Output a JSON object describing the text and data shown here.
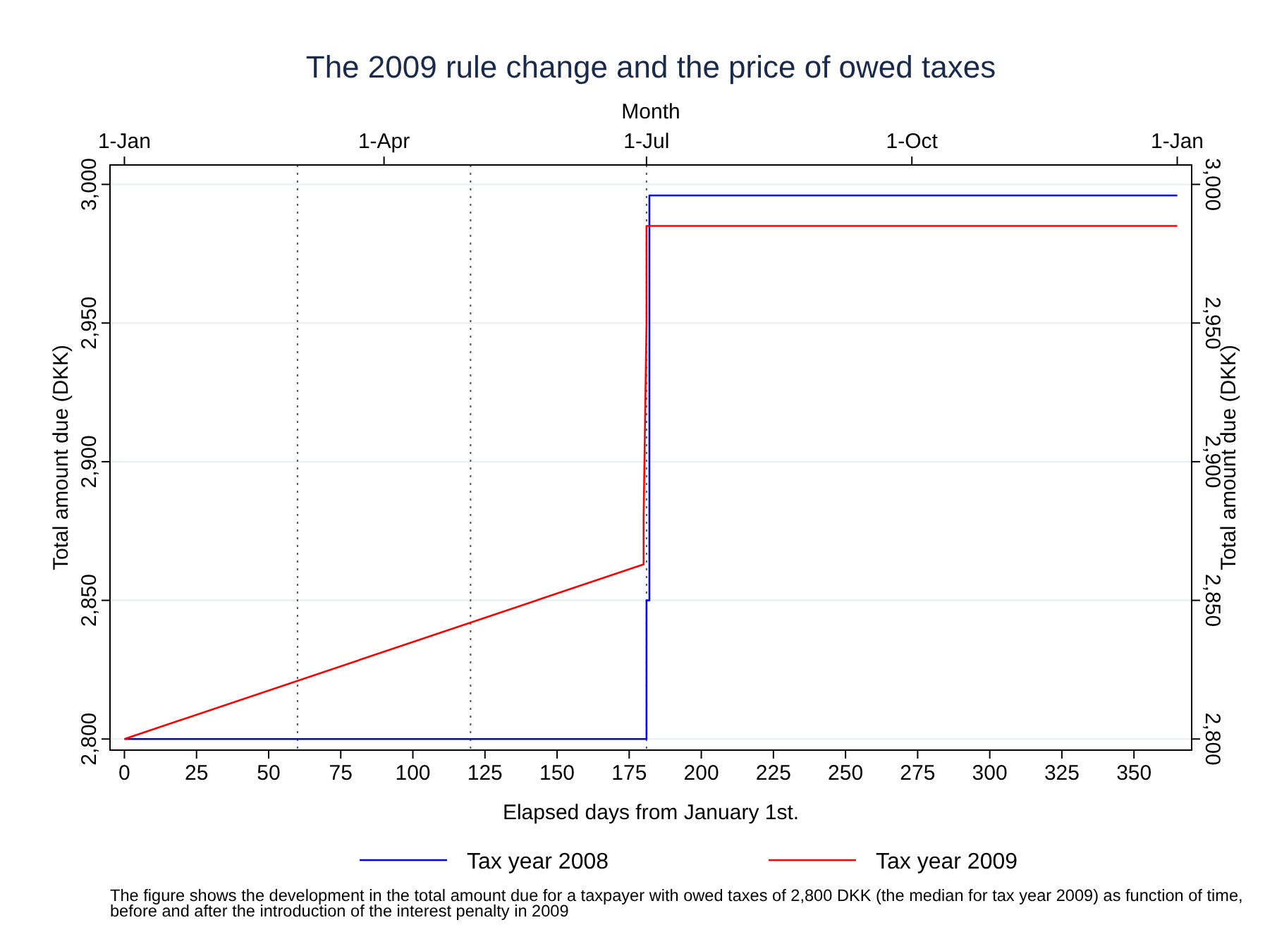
{
  "chart_data": {
    "type": "line",
    "title": "The 2009 rule change and the price of owed taxes",
    "xlabel": "Elapsed days from January 1st.",
    "ylabel": "Total amount due (DKK)",
    "y2label": "Total amount due (DKK)",
    "x2label": "Month",
    "xlim": [
      -5,
      370
    ],
    "xticks": [
      0,
      25,
      50,
      75,
      100,
      125,
      150,
      175,
      200,
      225,
      250,
      275,
      300,
      325,
      350
    ],
    "x2lim": [
      "2008-12-27",
      "2010-01-06"
    ],
    "x2ticks": [
      {
        "value": "2009-01-01",
        "label": "1-Jan"
      },
      {
        "value": "2009-04-01",
        "label": "1-Apr"
      },
      {
        "value": "2009-07-01",
        "label": "1-Jul"
      },
      {
        "value": "2009-10-01",
        "label": "1-Oct"
      },
      {
        "value": "2010-01-01",
        "label": "1-Jan"
      }
    ],
    "ylim": [
      2796,
      3007
    ],
    "yticks": [
      {
        "value": 2800,
        "label": "2,800"
      },
      {
        "value": 2850,
        "label": "2,850"
      },
      {
        "value": 2900,
        "label": "2,900"
      },
      {
        "value": 2950,
        "label": "2,950"
      },
      {
        "value": 3000,
        "label": "3,000"
      }
    ],
    "y2lim": [
      2796,
      3007
    ],
    "y2ticks": [
      {
        "value": 2800,
        "label": "2,800"
      },
      {
        "value": 2850,
        "label": "2,850"
      },
      {
        "value": 2900,
        "label": "2,900"
      },
      {
        "value": 2950,
        "label": "2,950"
      },
      {
        "value": 3000,
        "label": "3,000"
      }
    ],
    "grid": "y",
    "legend": "bottom",
    "line_style": "solid",
    "marker": "none",
    "ref_lines": [
      {
        "axis": "x",
        "value": 60,
        "line_style": "dotted",
        "color": "#555555"
      },
      {
        "axis": "x",
        "value": 120,
        "line_style": "dotted",
        "color": "#555555"
      },
      {
        "axis": "x",
        "value": 181,
        "line_style": "dotted",
        "color": "#555555"
      }
    ],
    "series": [
      {
        "name": "Tax year 2008",
        "color": "#0000ff",
        "x": [
          0,
          181,
          181,
          182,
          182,
          365
        ],
        "values": [
          2800,
          2800,
          2850,
          2850,
          2996,
          2996
        ]
      },
      {
        "name": "Tax year 2009",
        "color": "#ff0000",
        "x": [
          0,
          180,
          180,
          181,
          181,
          365
        ],
        "values": [
          2800,
          2863,
          2880,
          2950,
          2985,
          2985
        ]
      }
    ],
    "annotations": [
      "The figure shows the development in the total amount due for a taxpayer with owed taxes of 2,800 DKK (the median for tax year 2009) as function of time, before and after the introduction of the interest penalty in 2009"
    ]
  }
}
